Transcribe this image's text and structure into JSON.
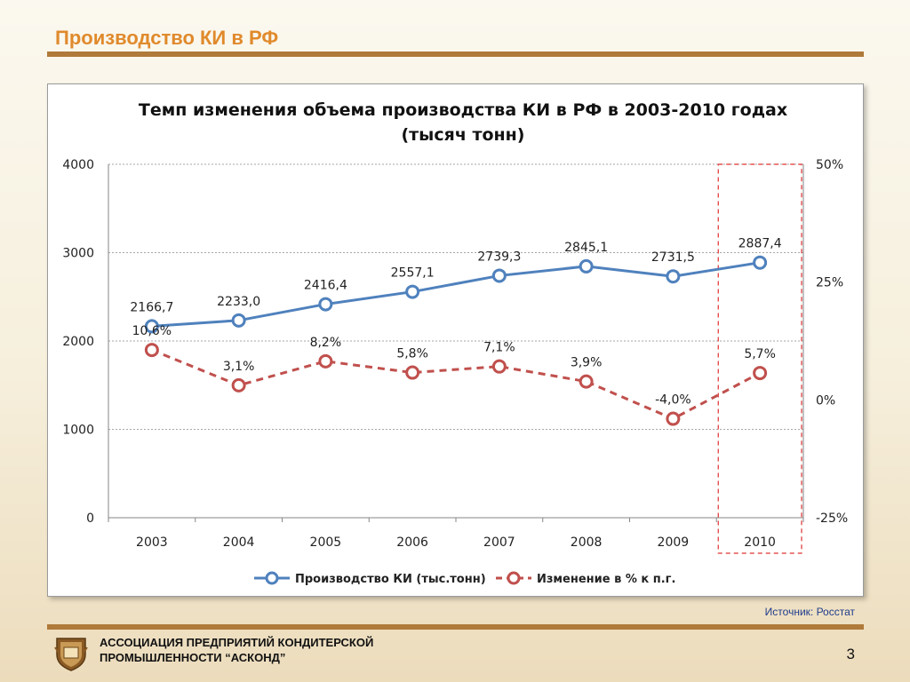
{
  "slide": {
    "title": "Производство КИ в РФ",
    "source": "Источник: Росстат",
    "org_line1": "АССОЦИАЦИЯ ПРЕДПРИЯТИЙ  КОНДИТЕРСКОЙ",
    "org_line2": "ПРОМЫШЛЕННОСТИ “АСКОНД”",
    "page_number": "3"
  },
  "colors": {
    "title": "#e08a2c",
    "rule": "#b07a3a",
    "production_series": "#4f81bd",
    "change_series": "#c0504d",
    "highlight_box": "#e03030"
  },
  "chart_data": {
    "type": "line",
    "title_line1": "Темп изменения  объема производства КИ в РФ в 2003-2010 годах",
    "title_line2": "(тысяч тонн)",
    "categories": [
      "2003",
      "2004",
      "2005",
      "2006",
      "2007",
      "2008",
      "2009",
      "2010"
    ],
    "y_left": {
      "min": 0,
      "max": 4000,
      "ticks": [
        0,
        1000,
        2000,
        3000,
        4000
      ],
      "tick_labels": [
        "0",
        "1000",
        "2000",
        "3000",
        "4000"
      ]
    },
    "y_right": {
      "min": -25,
      "max": 50,
      "ticks": [
        -25,
        0,
        25,
        50
      ],
      "tick_labels": [
        "-25%",
        "0%",
        "25%",
        "50%"
      ]
    },
    "grid": true,
    "legend_position": "bottom",
    "highlight_category": "2010",
    "series": [
      {
        "name": "Производство КИ (тыс.тонн)",
        "axis": "left",
        "style": "solid",
        "values": [
          2166.7,
          2233.0,
          2416.4,
          2557.1,
          2739.3,
          2845.1,
          2731.5,
          2887.4
        ],
        "labels": [
          "2166,7",
          "2233,0",
          "2416,4",
          "2557,1",
          "2739,3",
          "2845,1",
          "2731,5",
          "2887,4"
        ]
      },
      {
        "name": "Изменение в % к п.г.",
        "axis": "right",
        "style": "dashed",
        "values": [
          10.6,
          3.1,
          8.2,
          5.8,
          7.1,
          3.9,
          -4.0,
          5.7
        ],
        "labels": [
          "10,6%",
          "3,1%",
          "8,2%",
          "5,8%",
          "7,1%",
          "3,9%",
          "-4,0%",
          "5,7%"
        ]
      }
    ]
  }
}
